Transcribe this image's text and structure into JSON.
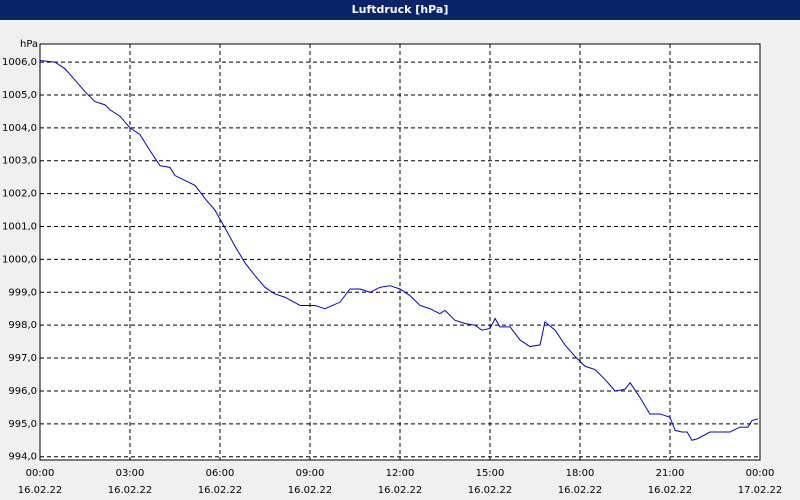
{
  "chart_data": {
    "type": "line",
    "title": "Luftdruck [hPa]",
    "y_unit": "hPa",
    "x": [
      0,
      0.5,
      0.83,
      1.17,
      1.5,
      1.83,
      2.17,
      2.33,
      2.67,
      3,
      3.33,
      3.67,
      4,
      4.33,
      4.5,
      4.83,
      5.17,
      5.5,
      5.83,
      6.17,
      6.5,
      6.83,
      7.17,
      7.5,
      7.83,
      8.17,
      8.67,
      9.17,
      9.5,
      10,
      10.33,
      10.67,
      11,
      11.33,
      11.67,
      12,
      12.33,
      12.67,
      13,
      13.33,
      13.5,
      13.83,
      14.17,
      14.5,
      14.73,
      15,
      15.17,
      15.33,
      15.67,
      16,
      16.33,
      16.67,
      16.83,
      17.17,
      17.5,
      17.83,
      18.17,
      18.5,
      18.83,
      19.17,
      19.5,
      19.67,
      20,
      20.33,
      20.67,
      21,
      21.17,
      21.4,
      21.57,
      21.73,
      21.93,
      22.33,
      22.67,
      23,
      23.33,
      23.6,
      23.73,
      23.93
    ],
    "series": [
      {
        "color": "#0000cc",
        "values": [
          1006.05,
          1006.0,
          1005.8,
          1005.45,
          1005.1,
          1004.8,
          1004.7,
          1004.55,
          1004.35,
          1004.0,
          1003.8,
          1003.3,
          1002.85,
          1002.8,
          1002.55,
          1002.4,
          1002.25,
          1001.85,
          1001.5,
          1000.95,
          1000.4,
          999.9,
          999.5,
          999.15,
          998.95,
          998.85,
          998.6,
          998.6,
          998.5,
          998.7,
          999.1,
          999.1,
          999.0,
          999.15,
          999.2,
          999.1,
          998.9,
          998.6,
          998.5,
          998.35,
          998.45,
          998.15,
          998.05,
          998.0,
          997.85,
          997.9,
          998.2,
          997.95,
          997.95,
          997.55,
          997.35,
          997.4,
          998.1,
          997.85,
          997.4,
          997.05,
          996.75,
          996.65,
          996.35,
          996.0,
          996.05,
          996.25,
          995.8,
          995.3,
          995.3,
          995.2,
          994.8,
          994.75,
          994.75,
          994.5,
          994.55,
          994.75,
          994.75,
          994.75,
          994.9,
          994.9,
          995.1,
          995.15
        ]
      }
    ],
    "xlim": [
      0,
      24
    ],
    "xticks": [
      {
        "value": 0,
        "label": "00:00",
        "date": "16.02.22"
      },
      {
        "value": 3,
        "label": "03:00",
        "date": "16.02.22"
      },
      {
        "value": 6,
        "label": "06:00",
        "date": "16.02.22"
      },
      {
        "value": 9,
        "label": "09:00",
        "date": "16.02.22"
      },
      {
        "value": 12,
        "label": "12:00",
        "date": "16.02.22"
      },
      {
        "value": 15,
        "label": "15:00",
        "date": "16.02.22"
      },
      {
        "value": 18,
        "label": "18:00",
        "date": "16.02.22"
      },
      {
        "value": 21,
        "label": "21:00",
        "date": "16.02.22"
      },
      {
        "value": 24,
        "label": "00:00",
        "date": "17.02.22"
      }
    ],
    "ylim": [
      993.9,
      1006.55
    ],
    "yticks": [
      {
        "value": 994,
        "label": "994,0"
      },
      {
        "value": 995,
        "label": "995,0"
      },
      {
        "value": 996,
        "label": "996,0"
      },
      {
        "value": 997,
        "label": "997,0"
      },
      {
        "value": 998,
        "label": "998,0"
      },
      {
        "value": 999,
        "label": "999,0"
      },
      {
        "value": 1000,
        "label": "1000,0"
      },
      {
        "value": 1001,
        "label": "1001,0"
      },
      {
        "value": 1002,
        "label": "1002,0"
      },
      {
        "value": 1003,
        "label": "1003,0"
      },
      {
        "value": 1004,
        "label": "1004,0"
      },
      {
        "value": 1005,
        "label": "1005,0"
      },
      {
        "value": 1006,
        "label": "1006,0"
      }
    ],
    "grid": true
  }
}
